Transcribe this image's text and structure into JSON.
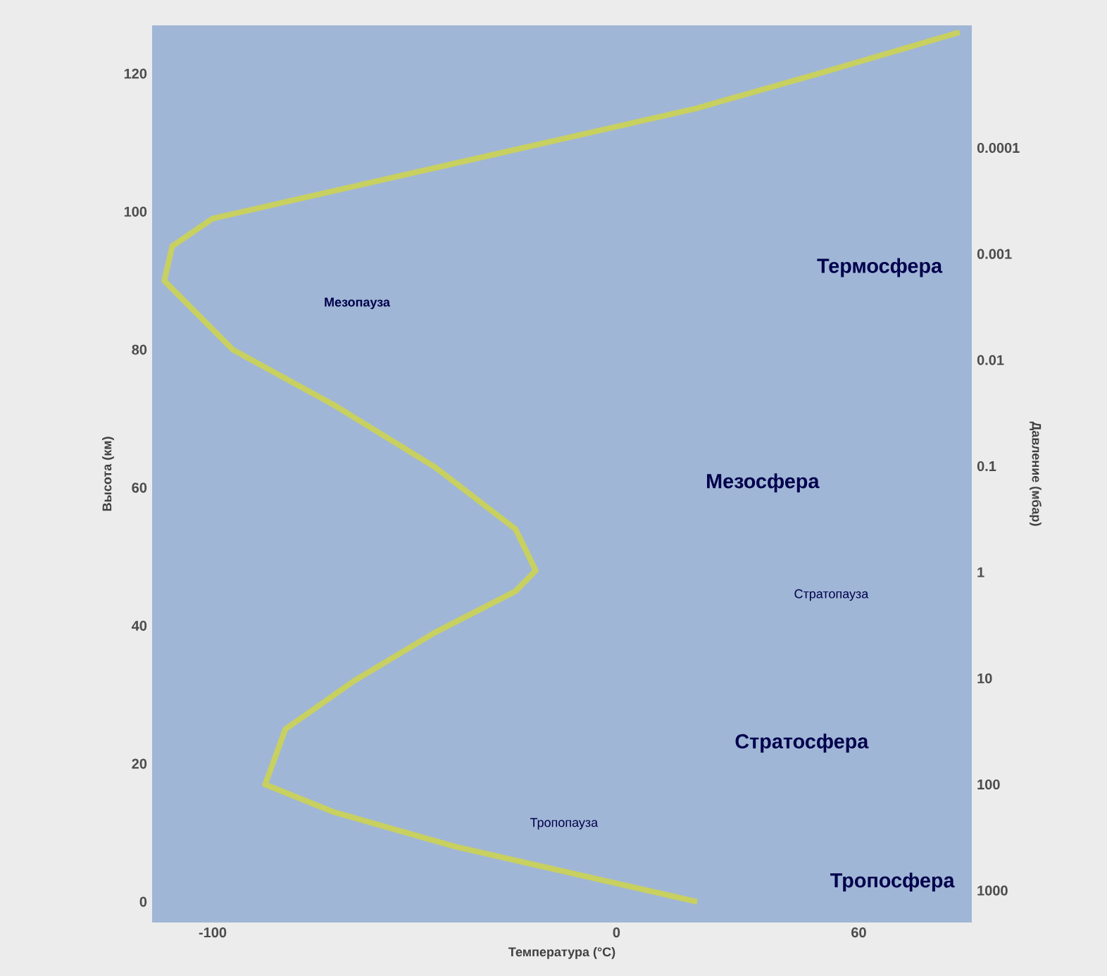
{
  "chart_data": {
    "type": "line",
    "xlabel": "Температура (°C)",
    "ylabel": "Высота (км)",
    "y2label": "Давление (мбар)",
    "series": [
      {
        "color": "#c8d060",
        "x": [
          20,
          -10,
          -40,
          -70,
          -87,
          -82,
          -65,
          -45,
          -25,
          -20,
          -25,
          -45,
          -70,
          -95,
          -112,
          -110,
          -100,
          -70,
          -40,
          -10,
          20,
          50,
          85
        ],
        "values": [
          0,
          4,
          8,
          13,
          17,
          25,
          32,
          39,
          45,
          48,
          54,
          63,
          72,
          80,
          90,
          95,
          99,
          103,
          107,
          111,
          115,
          120,
          126
        ]
      }
    ],
    "xlim": [
      -115,
      88
    ],
    "ylim": [
      -3,
      127
    ],
    "xticks": [
      -100,
      0,
      60
    ],
    "yticks": [
      0,
      20,
      40,
      60,
      80,
      100,
      120
    ],
    "y2lim": [
      2000,
      7e-06
    ],
    "y2ticks": [
      1000,
      100,
      10,
      1,
      0.1,
      0.01,
      0.001,
      0.0001
    ],
    "log": "y2",
    "annotations": [
      "Термосфера",
      "Мезопауза",
      "Мезосфера",
      "Стратопауза",
      "Стратосфера",
      "Тропопауза",
      "Тропосфера"
    ],
    "grid": false,
    "marker": "none",
    "line_style": "solid"
  }
}
